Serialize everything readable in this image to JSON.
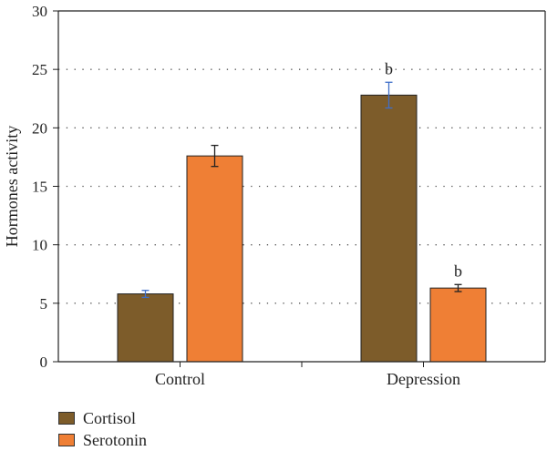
{
  "chart_data": {
    "type": "bar",
    "categories": [
      "Control",
      "Depression"
    ],
    "series": [
      {
        "name": "Cortisol",
        "color": "#7d5c2a",
        "values": [
          5.8,
          22.8
        ],
        "errors": [
          0.3,
          1.1
        ],
        "error_color": "#3f6ec9"
      },
      {
        "name": "Serotonin",
        "color": "#ef7f35",
        "values": [
          17.6,
          6.3
        ],
        "errors": [
          0.9,
          0.3
        ],
        "error_color": "#222222"
      }
    ],
    "annotations": [
      {
        "category": "Depression",
        "series": "Cortisol",
        "text": "b"
      },
      {
        "category": "Depression",
        "series": "Serotonin",
        "text": "b"
      }
    ],
    "title": "",
    "xlabel": "",
    "ylabel": "Hormones activity",
    "ylim": [
      0,
      30
    ],
    "yticks": [
      0,
      5,
      10,
      15,
      20,
      25,
      30
    ],
    "grid": "horizontal-dotted",
    "legend_position": "bottom-left"
  }
}
